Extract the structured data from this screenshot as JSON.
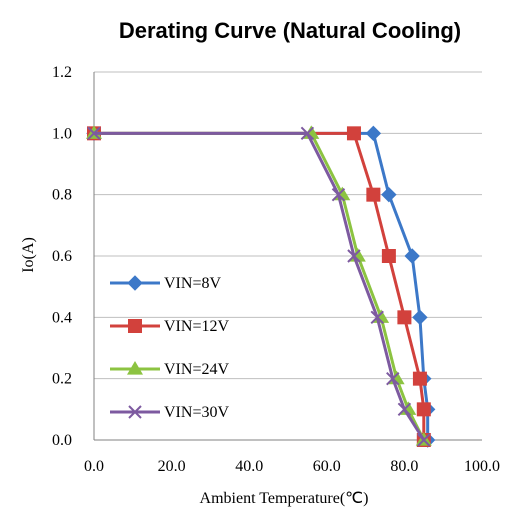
{
  "chart_data": {
    "type": "line",
    "title": "Derating Curve (Natural Cooling)",
    "xlabel": "Ambient Temperature(℃)",
    "ylabel": "Io(A)",
    "xlim": [
      0,
      100
    ],
    "ylim": [
      0,
      1.2
    ],
    "xticks": [
      "0.0",
      "20.0",
      "40.0",
      "60.0",
      "80.0",
      "100.0"
    ],
    "yticks": [
      "0.0",
      "0.2",
      "0.4",
      "0.6",
      "0.8",
      "1.0",
      "1.2"
    ],
    "grid": "horizontal",
    "legend_position": "left-bottom",
    "series": [
      {
        "name": "VIN=8V",
        "color": "#3c78c8",
        "marker": "diamond",
        "points": [
          [
            0,
            1.0
          ],
          [
            72,
            1.0
          ],
          [
            76,
            0.8
          ],
          [
            82,
            0.6
          ],
          [
            84,
            0.4
          ],
          [
            85,
            0.2
          ],
          [
            86,
            0.1
          ],
          [
            86,
            0.0
          ]
        ]
      },
      {
        "name": "VIN=12V",
        "color": "#d2413c",
        "marker": "square",
        "points": [
          [
            0,
            1.0
          ],
          [
            67,
            1.0
          ],
          [
            72,
            0.8
          ],
          [
            76,
            0.6
          ],
          [
            80,
            0.4
          ],
          [
            84,
            0.2
          ],
          [
            85,
            0.1
          ],
          [
            85,
            0.0
          ]
        ]
      },
      {
        "name": "VIN=24V",
        "color": "#8cc341",
        "marker": "triangle",
        "points": [
          [
            0,
            1.0
          ],
          [
            56,
            1.0
          ],
          [
            64,
            0.8
          ],
          [
            68,
            0.6
          ],
          [
            74,
            0.4
          ],
          [
            78,
            0.2
          ],
          [
            81,
            0.1
          ],
          [
            85,
            0.0
          ]
        ]
      },
      {
        "name": "VIN=30V",
        "color": "#7d5aa0",
        "marker": "x",
        "points": [
          [
            0,
            1.0
          ],
          [
            55,
            1.0
          ],
          [
            63,
            0.8
          ],
          [
            67,
            0.6
          ],
          [
            73,
            0.4
          ],
          [
            77,
            0.2
          ],
          [
            80,
            0.1
          ],
          [
            85,
            0.0
          ]
        ]
      }
    ]
  }
}
